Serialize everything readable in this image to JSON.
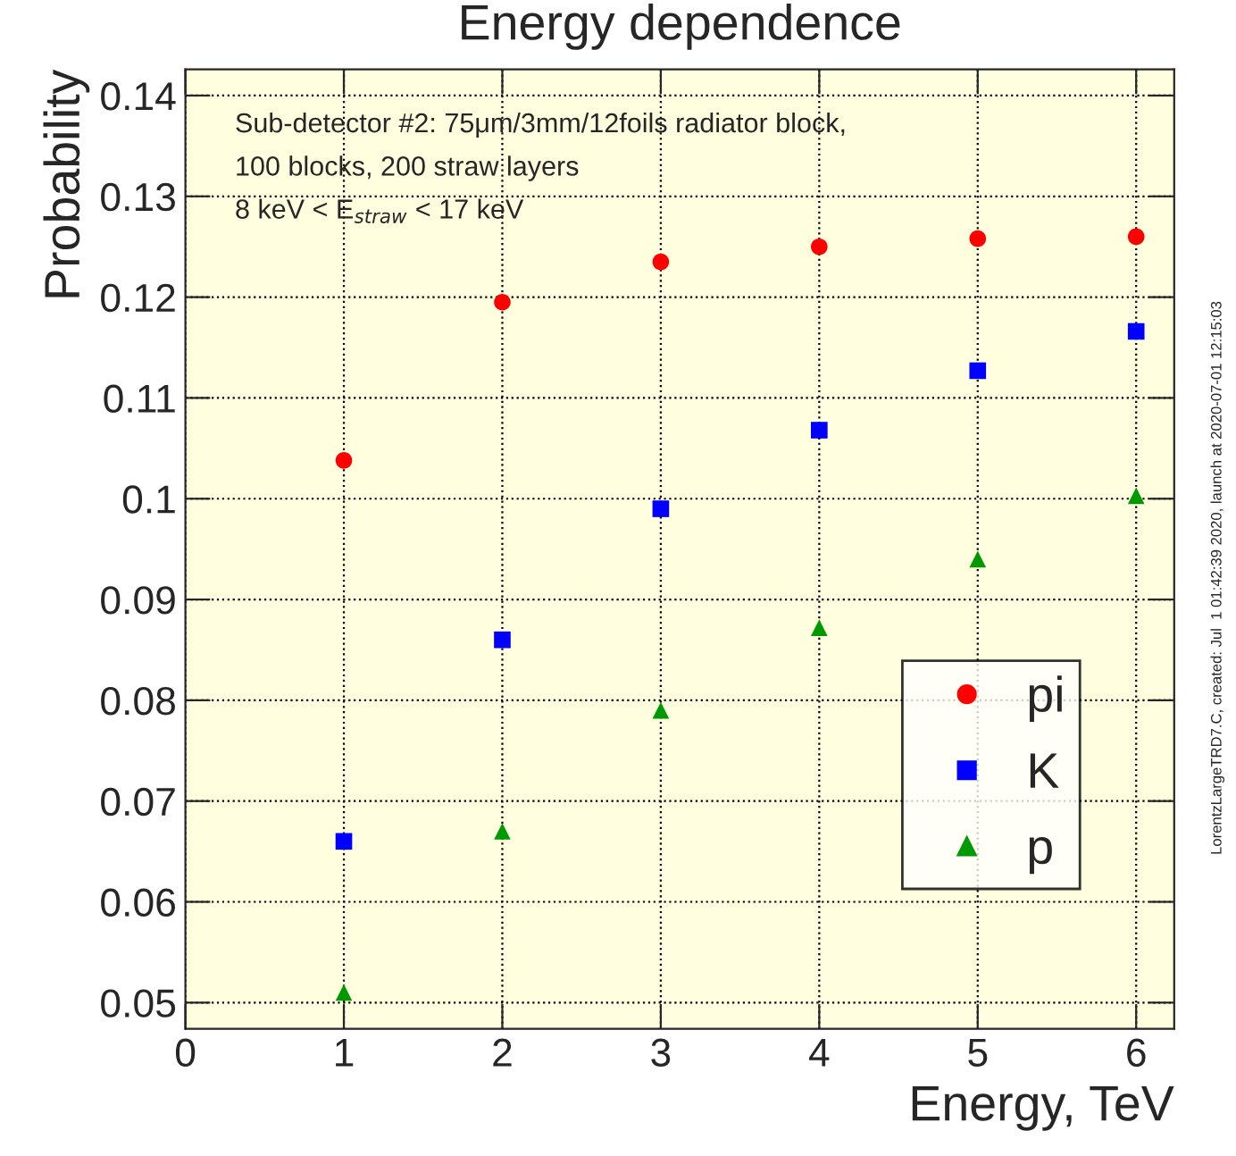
{
  "chart_data": {
    "type": "scatter",
    "title": "Energy dependence",
    "xlabel": "Energy, TeV",
    "ylabel": "Probability",
    "x": [
      1,
      2,
      3,
      4,
      5,
      6
    ],
    "series": [
      {
        "name": "pi",
        "color": "#ff0000",
        "marker": "circle",
        "values": [
          0.1038,
          0.1195,
          0.1235,
          0.125,
          0.1258,
          0.126
        ]
      },
      {
        "name": "K",
        "color": "#0000ff",
        "marker": "square",
        "values": [
          0.066,
          0.086,
          0.099,
          0.1068,
          0.1127,
          0.1166
        ]
      },
      {
        "name": "p",
        "color": "#009900",
        "marker": "triangle",
        "values": [
          0.051,
          0.067,
          0.079,
          0.0872,
          0.094,
          0.1003
        ]
      }
    ],
    "xlim": [
      0,
      6.24
    ],
    "xticks": [
      0,
      1,
      2,
      3,
      4,
      5,
      6
    ],
    "ylim": [
      0.0474,
      0.1426
    ],
    "yticks": [
      0.05,
      0.06,
      0.07,
      0.08,
      0.09,
      0.1,
      0.11,
      0.12,
      0.13,
      0.14
    ],
    "grid": true,
    "legend": "bottom right",
    "annotations": [
      "Sub-detector #2: 75μm/3mm/12foils radiator block,",
      "100 blocks, 200 straw layers",
      "8 keV < E$_{straw}$ < 17 keV",
      "LorentzLargeTRD7.C, created: Jul  1 01:42:39 2020, launch at 2020-07-01 12:15:03"
    ]
  }
}
